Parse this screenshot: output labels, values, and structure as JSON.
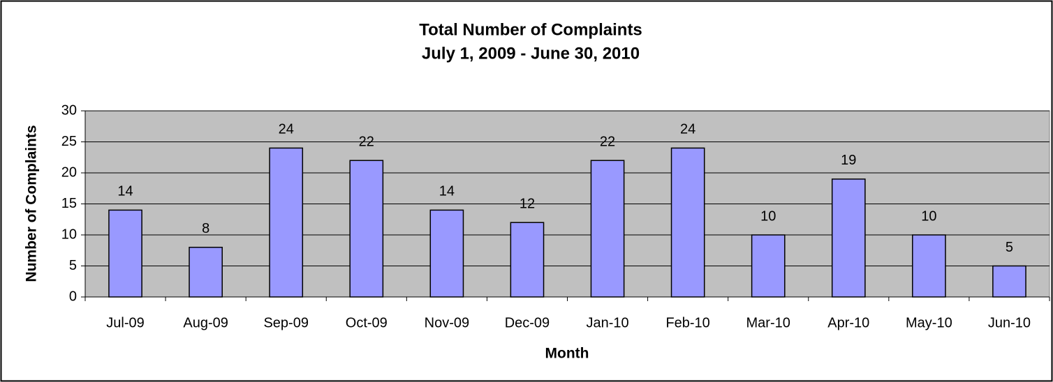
{
  "chart_data": {
    "type": "bar",
    "title": "Total Number of Complaints",
    "subtitle": "July 1, 2009 - June 30, 2010",
    "x_label": "Month",
    "y_label": "Number of Complaints",
    "categories": [
      "Jul-09",
      "Aug-09",
      "Sep-09",
      "Oct-09",
      "Nov-09",
      "Dec-09",
      "Jan-10",
      "Feb-10",
      "Mar-10",
      "Apr-10",
      "May-10",
      "Jun-10"
    ],
    "values": [
      14,
      8,
      24,
      22,
      14,
      12,
      22,
      24,
      10,
      19,
      10,
      5
    ],
    "color": "#9999ff",
    "ylim": [
      0,
      30
    ],
    "yticks": [
      0,
      5,
      10,
      15,
      20,
      25,
      30
    ],
    "grid": true
  }
}
